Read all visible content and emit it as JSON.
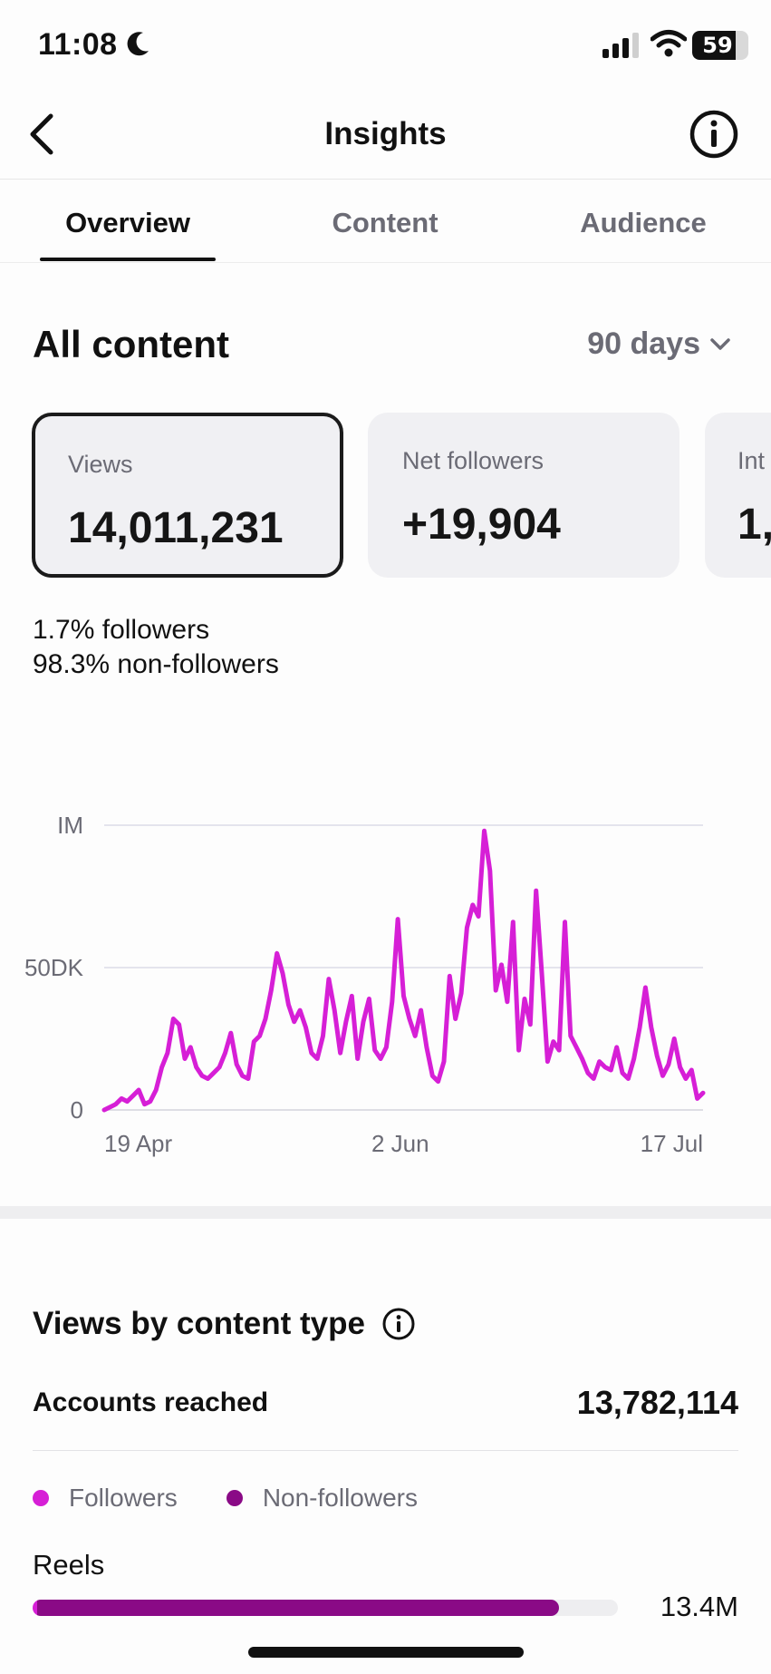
{
  "status_bar": {
    "time": "11:08",
    "battery": "59",
    "icons": [
      "moon-icon",
      "cellular-signal-icon",
      "wifi-icon",
      "battery-icon"
    ]
  },
  "nav": {
    "title": "Insights",
    "back_icon": "chevron-left-icon",
    "info_icon": "info-circle-icon"
  },
  "tabs": [
    {
      "label": "Overview",
      "active": true
    },
    {
      "label": "Content",
      "active": false
    },
    {
      "label": "Audience",
      "active": false
    }
  ],
  "overview": {
    "title": "All content",
    "range": "90 days",
    "cards": [
      {
        "label": "Views",
        "value": "14,011,231",
        "selected": true
      },
      {
        "label": "Net followers",
        "value": "+19,904",
        "selected": false
      },
      {
        "label": "Int",
        "value": "1,",
        "selected": false
      }
    ],
    "split": [
      {
        "pct": "1.7%",
        "label": "followers"
      },
      {
        "pct": "98.3%",
        "label": "non-followers"
      }
    ]
  },
  "chart_data": {
    "type": "line",
    "color": "#d61fd6",
    "y_tick_labels": [
      "IM",
      "50DK",
      "0"
    ],
    "y_ticks": [
      1000000,
      500000,
      0
    ],
    "ylim": [
      0,
      1000000
    ],
    "x_tick_labels": [
      "19 Apr",
      "2 Jun",
      "17 Jul"
    ],
    "x_ticks": [
      0,
      44,
      89
    ],
    "xlim": [
      0,
      89
    ],
    "grid": true,
    "series": [
      {
        "values": [
          0,
          10000,
          20000,
          40000,
          30000,
          50000,
          70000,
          20000,
          30000,
          70000,
          150000,
          200000,
          320000,
          300000,
          180000,
          220000,
          150000,
          120000,
          110000,
          130000,
          150000,
          200000,
          270000,
          160000,
          120000,
          110000,
          240000,
          260000,
          320000,
          420000,
          550000,
          480000,
          370000,
          310000,
          350000,
          290000,
          200000,
          180000,
          260000,
          460000,
          350000,
          200000,
          310000,
          400000,
          180000,
          310000,
          390000,
          210000,
          180000,
          220000,
          380000,
          670000,
          400000,
          320000,
          260000,
          350000,
          220000,
          120000,
          100000,
          170000,
          470000,
          320000,
          410000,
          640000,
          720000,
          680000,
          980000,
          840000,
          420000,
          510000,
          380000,
          660000,
          210000,
          390000,
          300000,
          770000,
          480000,
          170000,
          240000,
          210000,
          660000,
          260000,
          220000,
          180000,
          130000,
          110000,
          170000,
          150000,
          140000,
          220000,
          130000,
          110000,
          180000,
          290000,
          430000,
          290000,
          190000,
          120000,
          160000,
          250000,
          150000,
          110000,
          140000,
          40000,
          60000
        ]
      }
    ]
  },
  "content_type": {
    "title": "Views by content type",
    "title_icon": "info-circle-icon",
    "accounts_reached_label": "Accounts reached",
    "accounts_reached_value": "13,782,114",
    "legend": [
      {
        "label": "Followers",
        "color": "#d61fd6"
      },
      {
        "label": "Non-followers",
        "color": "#8a0a86"
      }
    ],
    "rows": [
      {
        "label": "Reels",
        "value": "13.4M",
        "followers_fraction": 0.017,
        "non_followers_fraction": 0.983
      }
    ]
  }
}
